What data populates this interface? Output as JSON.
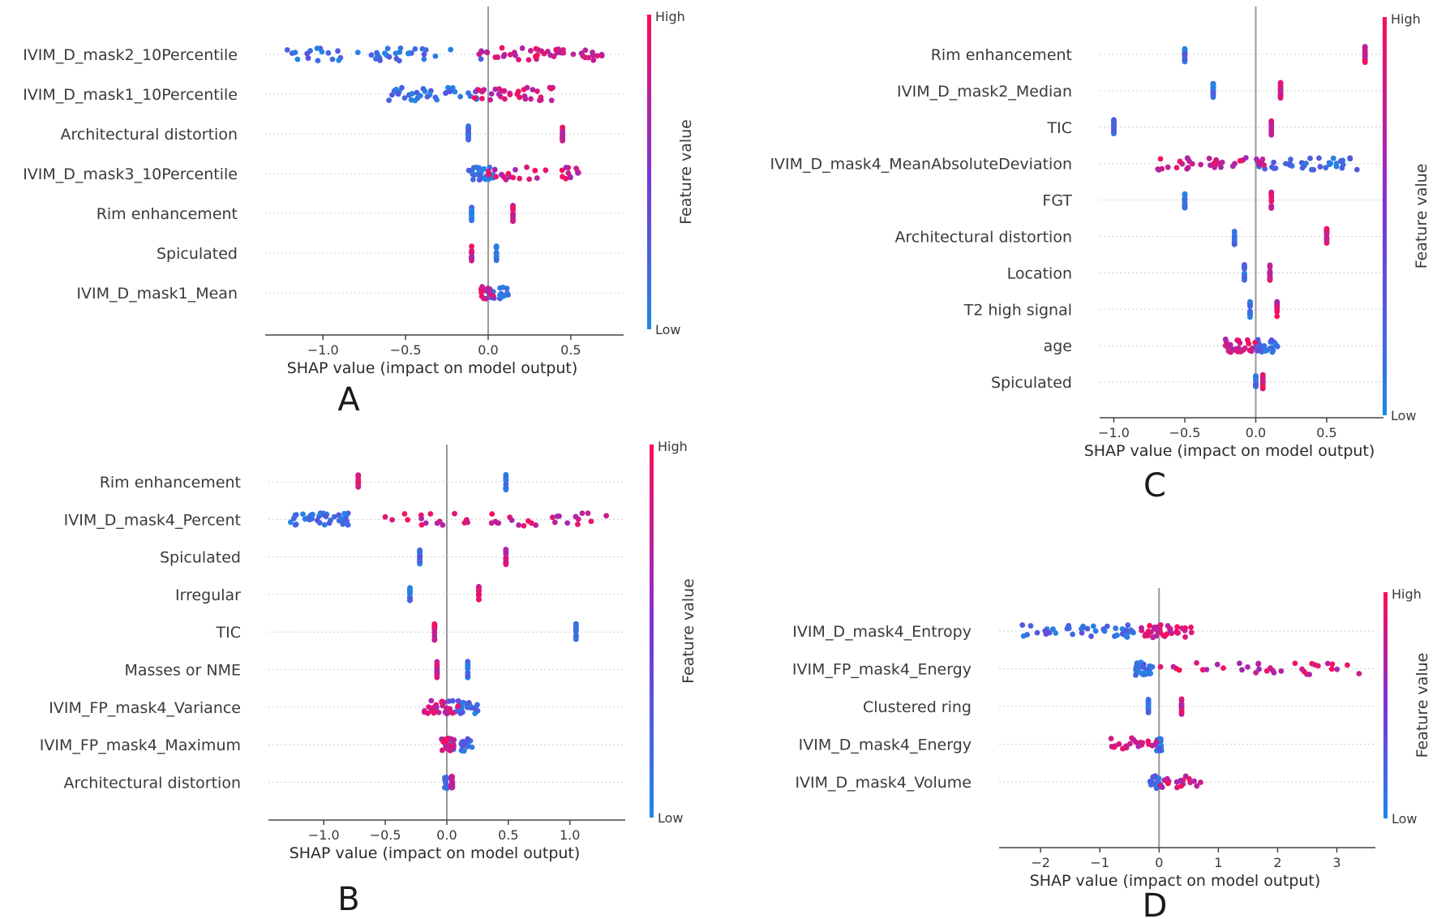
{
  "colors": {
    "low": "#1e88e5",
    "high": "#ff0d57",
    "axis": "#444444",
    "zero_line": "#999999",
    "grid": "#cccccc"
  },
  "chart_data": [
    {
      "type": "scatter",
      "panel_label": "A",
      "xlabel": "SHAP value (impact on model output)",
      "xlim": [
        -1.35,
        0.82
      ],
      "xticks": [
        -1.0,
        -0.5,
        0.0,
        0.5
      ],
      "xtick_labels": [
        "−1.0",
        "−0.5",
        "0.0",
        "0.5"
      ],
      "colorbar": {
        "title": "Feature value",
        "high": "High",
        "low": "Low"
      },
      "features": [
        {
          "name": "IVIM_D_mask2_10Percentile",
          "low_range": [
            -1.25,
            0.05
          ],
          "high_range": [
            -0.05,
            0.72
          ],
          "count": 90
        },
        {
          "name": "IVIM_D_mask1_10Percentile",
          "low_range": [
            -0.6,
            -0.05
          ],
          "high_range": [
            -0.1,
            0.4
          ],
          "count": 70
        },
        {
          "name": "Architectural distortion",
          "low_range": [
            -0.12,
            -0.12
          ],
          "high_range": [
            0.45,
            0.45
          ],
          "count": 30
        },
        {
          "name": "IVIM_D_mask3_10Percentile",
          "low_range": [
            -0.14,
            0.05
          ],
          "high_range": [
            0.0,
            0.55
          ],
          "count": 60
        },
        {
          "name": "Rim enhancement",
          "low_range": [
            -0.1,
            -0.1
          ],
          "high_range": [
            0.15,
            0.15
          ],
          "count": 30
        },
        {
          "name": "Spiculated",
          "low_range": [
            0.05,
            0.05
          ],
          "high_range": [
            -0.1,
            -0.1
          ],
          "count": 30
        },
        {
          "name": "IVIM_D_mask1_Mean",
          "low_range": [
            0.0,
            0.12
          ],
          "high_range": [
            -0.04,
            0.03
          ],
          "count": 35
        }
      ]
    },
    {
      "type": "scatter",
      "panel_label": "B",
      "xlabel": "SHAP value (impact on model output)",
      "xlim": [
        -1.45,
        1.45
      ],
      "xticks": [
        -1.0,
        -0.5,
        0.0,
        0.5,
        1.0
      ],
      "xtick_labels": [
        "−1.0",
        "−0.5",
        "0.0",
        "0.5",
        "1.0"
      ],
      "colorbar": {
        "title": "Feature value",
        "high": "High",
        "low": "Low"
      },
      "features": [
        {
          "name": "Rim enhancement",
          "low_range": [
            0.48,
            0.48
          ],
          "high_range": [
            -0.72,
            -0.72
          ],
          "count": 30
        },
        {
          "name": "IVIM_D_mask4_Percent",
          "low_range": [
            -1.3,
            -0.8
          ],
          "high_range": [
            -0.5,
            1.3
          ],
          "count": 80
        },
        {
          "name": "Spiculated",
          "low_range": [
            -0.22,
            -0.22
          ],
          "high_range": [
            0.48,
            0.48
          ],
          "count": 30
        },
        {
          "name": "Irregular",
          "low_range": [
            -0.3,
            -0.3
          ],
          "high_range": [
            0.26,
            0.26
          ],
          "count": 30
        },
        {
          "name": "TIC",
          "low_range": [
            1.05,
            1.05
          ],
          "high_range": [
            -0.1,
            -0.1
          ],
          "count": 30
        },
        {
          "name": "Masses or NME",
          "low_range": [
            0.17,
            0.17
          ],
          "high_range": [
            -0.08,
            -0.08
          ],
          "count": 30
        },
        {
          "name": "IVIM_FP_mask4_Variance",
          "low_range": [
            0.0,
            0.27
          ],
          "high_range": [
            -0.18,
            0.1
          ],
          "count": 55
        },
        {
          "name": "IVIM_FP_mask4_Maximum",
          "low_range": [
            0.0,
            0.24
          ],
          "high_range": [
            -0.05,
            0.06
          ],
          "count": 40
        },
        {
          "name": "Architectural distortion",
          "low_range": [
            -0.02,
            0.0
          ],
          "high_range": [
            0.04,
            0.04
          ],
          "count": 30
        }
      ]
    },
    {
      "type": "scatter",
      "panel_label": "C",
      "xlabel": "SHAP value (impact on model output)",
      "xlim": [
        -1.1,
        0.9
      ],
      "xticks": [
        -1.0,
        -0.5,
        0.0,
        0.5
      ],
      "xtick_labels": [
        "−1.0",
        "−0.5",
        "0.0",
        "0.5"
      ],
      "colorbar": {
        "title": "Feature value",
        "high": "High",
        "low": "Low"
      },
      "features": [
        {
          "name": "Rim enhancement",
          "low_range": [
            -0.5,
            -0.5
          ],
          "high_range": [
            0.77,
            0.77
          ],
          "count": 30
        },
        {
          "name": "IVIM_D_mask2_Median",
          "low_range": [
            -0.3,
            -0.3
          ],
          "high_range": [
            0.1,
            0.25
          ],
          "count": 40
        },
        {
          "name": "TIC",
          "low_range": [
            -1.0,
            -1.0
          ],
          "high_range": [
            0.11,
            0.11
          ],
          "count": 30
        },
        {
          "name": "IVIM_D_mask4_MeanAbsoluteDeviation",
          "low_range": [
            0.0,
            0.72
          ],
          "high_range": [
            -0.72,
            0.1
          ],
          "count": 75
        },
        {
          "name": "FGT",
          "low_range": [
            -0.5,
            -0.5
          ],
          "high_range": [
            0.11,
            0.11
          ],
          "count": 30
        },
        {
          "name": "Architectural distortion",
          "low_range": [
            -0.15,
            -0.15
          ],
          "high_range": [
            0.5,
            0.5
          ],
          "count": 30
        },
        {
          "name": "Location",
          "low_range": [
            -0.08,
            -0.08
          ],
          "high_range": [
            0.1,
            0.1
          ],
          "count": 30
        },
        {
          "name": "T2 high signal",
          "low_range": [
            -0.04,
            -0.04
          ],
          "high_range": [
            0.15,
            0.15
          ],
          "count": 30
        },
        {
          "name": "age",
          "low_range": [
            0.0,
            0.15
          ],
          "high_range": [
            -0.22,
            0.0
          ],
          "count": 50
        },
        {
          "name": "Spiculated",
          "low_range": [
            0.0,
            0.0
          ],
          "high_range": [
            0.05,
            0.05
          ],
          "count": 30
        }
      ]
    },
    {
      "type": "scatter",
      "panel_label": "D",
      "xlabel": "SHAP value (impact on model output)",
      "xlim": [
        -2.7,
        3.65
      ],
      "xticks": [
        -2,
        -1,
        0,
        1,
        2,
        3
      ],
      "xtick_labels": [
        "−2",
        "−1",
        "0",
        "1",
        "2",
        "3"
      ],
      "colorbar": {
        "title": "Feature value",
        "high": "High",
        "low": "Low"
      },
      "features": [
        {
          "name": "IVIM_D_mask4_Entropy",
          "low_range": [
            -2.35,
            -0.4
          ],
          "high_range": [
            -0.3,
            0.55
          ],
          "count": 80
        },
        {
          "name": "IVIM_FP_mask4_Energy",
          "low_range": [
            -0.4,
            -0.1
          ],
          "high_range": [
            0.0,
            3.4
          ],
          "count": 70
        },
        {
          "name": "Clustered ring",
          "low_range": [
            -0.18,
            -0.18
          ],
          "high_range": [
            0.38,
            0.38
          ],
          "count": 30
        },
        {
          "name": "IVIM_D_mask4_Energy",
          "low_range": [
            -0.05,
            0.05
          ],
          "high_range": [
            -0.8,
            0.0
          ],
          "count": 45
        },
        {
          "name": "IVIM_D_mask4_Volume",
          "low_range": [
            -0.15,
            0.05
          ],
          "high_range": [
            0.0,
            0.7
          ],
          "count": 40
        }
      ]
    }
  ]
}
